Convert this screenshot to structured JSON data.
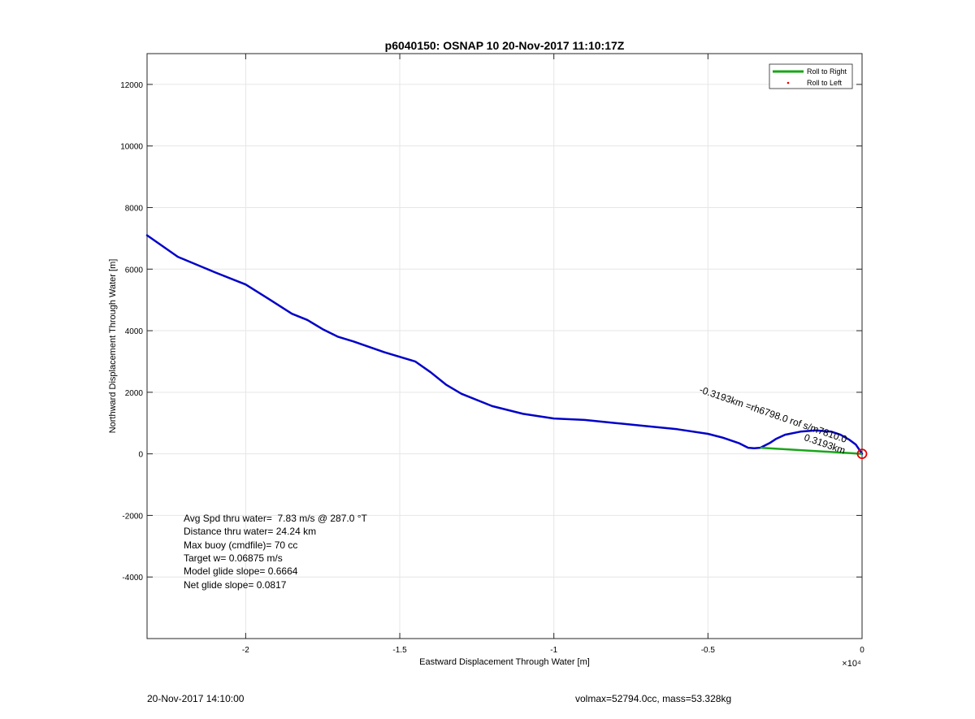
{
  "footer": {
    "left": "20-Nov-2017 14:10:00",
    "right": "volmax=52794.0cc, mass=53.328kg"
  },
  "colors": {
    "track": "#0000c8",
    "roll_right": "#1aa51a",
    "roll_left": "#e60000",
    "grid": "#e6e6e6",
    "axis": "#262626"
  },
  "chart_data": {
    "type": "line",
    "title": "p6040150: OSNAP 10 20-Nov-2017 11:10:17Z",
    "xlabel": "Eastward Displacement Through Water [m]",
    "ylabel": "Northward Displacement Through Water [m]",
    "x_exponent_label": "×10⁴",
    "xlim": [
      -23200,
      0
    ],
    "ylim": [
      -6000,
      13000
    ],
    "x_ticks": [
      -20000,
      -15000,
      -10000,
      -5000,
      0
    ],
    "x_tick_labels": [
      "-2",
      "-1.5",
      "-1",
      "-0.5",
      "0"
    ],
    "y_ticks": [
      -4000,
      -2000,
      0,
      2000,
      4000,
      6000,
      8000,
      10000,
      12000
    ],
    "y_tick_labels": [
      "-4000",
      "-2000",
      "0",
      "2000",
      "4000",
      "6000",
      "8000",
      "10000",
      "12000"
    ],
    "grid": true,
    "legend_position": "top-right",
    "legend": [
      "Roll to Right",
      "Roll to Left"
    ],
    "series": [
      {
        "kind": "track",
        "x": [
          -23200,
          -22200,
          -21000,
          -20000,
          -19200,
          -18500,
          -18000,
          -17500,
          -17000,
          -16500,
          -15500,
          -14500,
          -14000,
          -13500,
          -13000,
          -12000,
          -11000,
          -10000,
          -9000,
          -8000,
          -7000,
          -6000,
          -5000,
          -4500,
          -4000,
          -3700,
          -3500,
          -3300,
          -3000,
          -2800,
          -2500,
          -2000,
          -1500,
          -1000,
          -700,
          -400,
          -200,
          -100,
          0
        ],
        "y": [
          7100,
          6400,
          5900,
          5500,
          5000,
          4550,
          4350,
          4050,
          3800,
          3650,
          3300,
          3000,
          2650,
          2250,
          1950,
          1550,
          1300,
          1150,
          1100,
          1000,
          900,
          800,
          650,
          520,
          350,
          200,
          180,
          200,
          350,
          480,
          620,
          720,
          760,
          720,
          620,
          450,
          300,
          150,
          0
        ]
      },
      {
        "name": "Roll to Right",
        "x": [
          -3300,
          0
        ],
        "y": [
          200,
          0
        ]
      }
    ],
    "start_marker": {
      "x": 0,
      "y": 0
    },
    "annotations": [
      {
        "text": "0.3193km",
        "x": -1900,
        "y": 450,
        "angle_deg": 19
      },
      {
        "text": "-0.3193km =rh6798.0 rof s/m7810.0",
        "x": -5300,
        "y": 2000,
        "angle_deg": 19
      }
    ],
    "stats": [
      "Avg Spd thru water=  7.83 m/s @ 287.0 °T",
      "Distance thru water= 24.24 km",
      "Max buoy (cmdfile)= 70 cc",
      "Target w= 0.06875 m/s",
      "Model glide slope= 0.6664",
      "Net glide slope= 0.0817"
    ]
  }
}
